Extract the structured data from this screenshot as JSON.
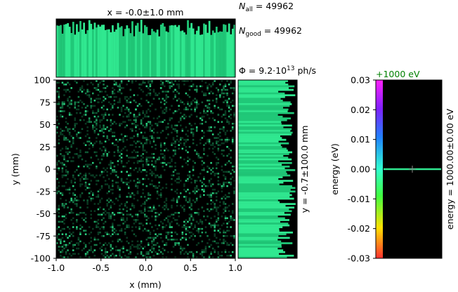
{
  "chart_data": {
    "type": "heatmap",
    "title_x": "x = -0.0±1.0 mm",
    "side_label_y": "y = -0.7±100.0 mm",
    "side_label_energy": "energy = 1000.00±0.00 eV",
    "energy_offset_label": "+1000 eV",
    "stats": {
      "n_all": "N_all = 49962",
      "n_good": "N_good = 49962",
      "flux": "Φ = 9.2·10^13 ph/s"
    },
    "xlabel": "x (mm)",
    "ylabel": "y (mm)",
    "energy_axis_label": "energy (eV)",
    "x_ticks": [
      "-1.0",
      "-0.5",
      "0.0",
      "0.5",
      "1.0"
    ],
    "y_ticks": [
      "100",
      "75",
      "50",
      "25",
      "0",
      "-25",
      "-50",
      "-75",
      "-100"
    ],
    "energy_ticks": [
      "0.03",
      "0.02",
      "0.01",
      "0.00",
      "-0.01",
      "-0.02",
      "-0.03"
    ],
    "xlim": [
      -1.0,
      1.0
    ],
    "ylim": [
      -100,
      100
    ],
    "energy_lim": [
      -0.03,
      0.03
    ],
    "energy_value": 0.0,
    "beam_color": "#30e890",
    "colorbar": [
      "#ff3030",
      "#ffe000",
      "#40ff40",
      "#30ffd0",
      "#2080ff",
      "#8020ff",
      "#ff20ff"
    ]
  }
}
